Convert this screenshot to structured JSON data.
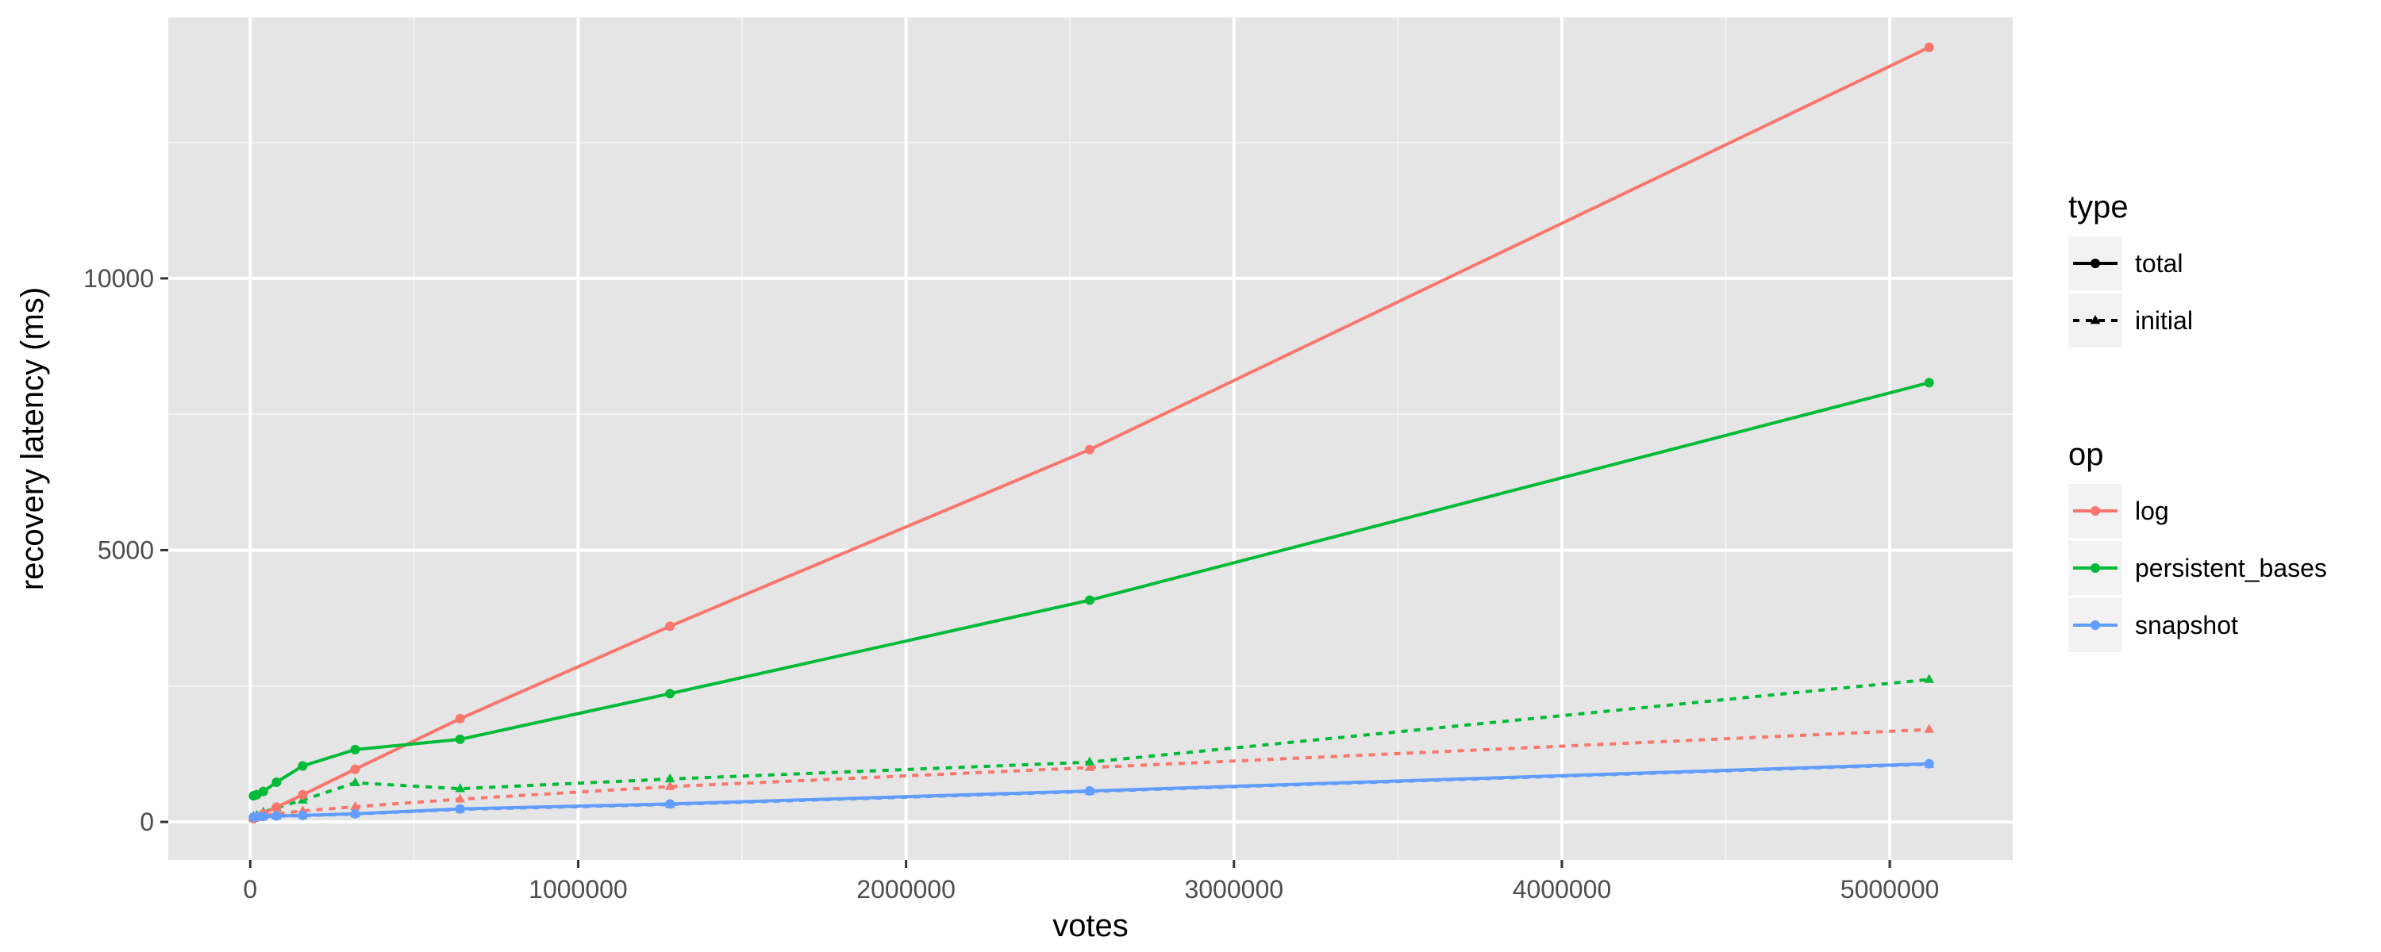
{
  "chart_data": {
    "type": "line",
    "xlabel": "votes",
    "ylabel": "recovery latency (ms)",
    "xlim": [
      -250000,
      5375000
    ],
    "ylim": [
      -700,
      14800
    ],
    "x_ticks": [
      0,
      1000000,
      2000000,
      3000000,
      4000000,
      5000000
    ],
    "x_tick_labels": [
      "0",
      "1000000",
      "2000000",
      "3000000",
      "4000000",
      "5000000"
    ],
    "y_ticks": [
      0,
      5000,
      10000
    ],
    "y_tick_labels": [
      "0",
      "5000",
      "10000"
    ],
    "grid": true,
    "legend_position": "right",
    "legends": [
      {
        "title": "type",
        "entries": [
          {
            "label": "total",
            "linetype": "solid",
            "marker": "circle"
          },
          {
            "label": "initial",
            "linetype": "dashed",
            "marker": "triangle"
          }
        ]
      },
      {
        "title": "op",
        "entries": [
          {
            "label": "log",
            "color": "#F8766D"
          },
          {
            "label": "persistent_bases",
            "color": "#00BA38"
          },
          {
            "label": "snapshot",
            "color": "#619CFF"
          }
        ]
      }
    ],
    "series": [
      {
        "op": "log",
        "type": "total",
        "color": "#F8766D",
        "linetype": "solid",
        "x": [
          10000,
          20000,
          40000,
          80000,
          160000,
          320000,
          640000,
          1280000,
          2560000,
          5120000
        ],
        "y": [
          60,
          90,
          150,
          270,
          500,
          970,
          1900,
          3600,
          6850,
          14250
        ]
      },
      {
        "op": "log",
        "type": "initial",
        "color": "#F8766D",
        "linetype": "dashed",
        "x": [
          10000,
          20000,
          40000,
          80000,
          160000,
          320000,
          640000,
          1280000,
          2560000,
          5120000
        ],
        "y": [
          60,
          80,
          110,
          150,
          200,
          280,
          420,
          650,
          1000,
          1700
        ]
      },
      {
        "op": "persistent_bases",
        "type": "total",
        "color": "#00BA38",
        "linetype": "solid",
        "x": [
          10000,
          20000,
          40000,
          80000,
          160000,
          320000,
          640000,
          1280000,
          2560000,
          5120000
        ],
        "y": [
          480,
          500,
          560,
          730,
          1030,
          1330,
          1520,
          2360,
          4080,
          8080
        ]
      },
      {
        "op": "persistent_bases",
        "type": "initial",
        "color": "#00BA38",
        "linetype": "dashed",
        "x": [
          10000,
          20000,
          40000,
          80000,
          160000,
          320000,
          640000,
          1280000,
          2560000,
          5120000
        ],
        "y": [
          100,
          120,
          180,
          260,
          400,
          720,
          610,
          790,
          1100,
          2620
        ]
      },
      {
        "op": "snapshot",
        "type": "total",
        "color": "#619CFF",
        "linetype": "solid",
        "x": [
          10000,
          20000,
          40000,
          80000,
          160000,
          320000,
          640000,
          1280000,
          2560000,
          5120000
        ],
        "y": [
          90,
          95,
          100,
          110,
          120,
          150,
          240,
          330,
          570,
          1070
        ]
      },
      {
        "op": "snapshot",
        "type": "initial",
        "color": "#619CFF",
        "linetype": "dashed",
        "x": [
          10000,
          20000,
          40000,
          80000,
          160000,
          320000,
          640000,
          1280000,
          2560000,
          5120000
        ],
        "y": [
          80,
          85,
          95,
          105,
          115,
          145,
          230,
          320,
          560,
          1060
        ]
      }
    ]
  }
}
